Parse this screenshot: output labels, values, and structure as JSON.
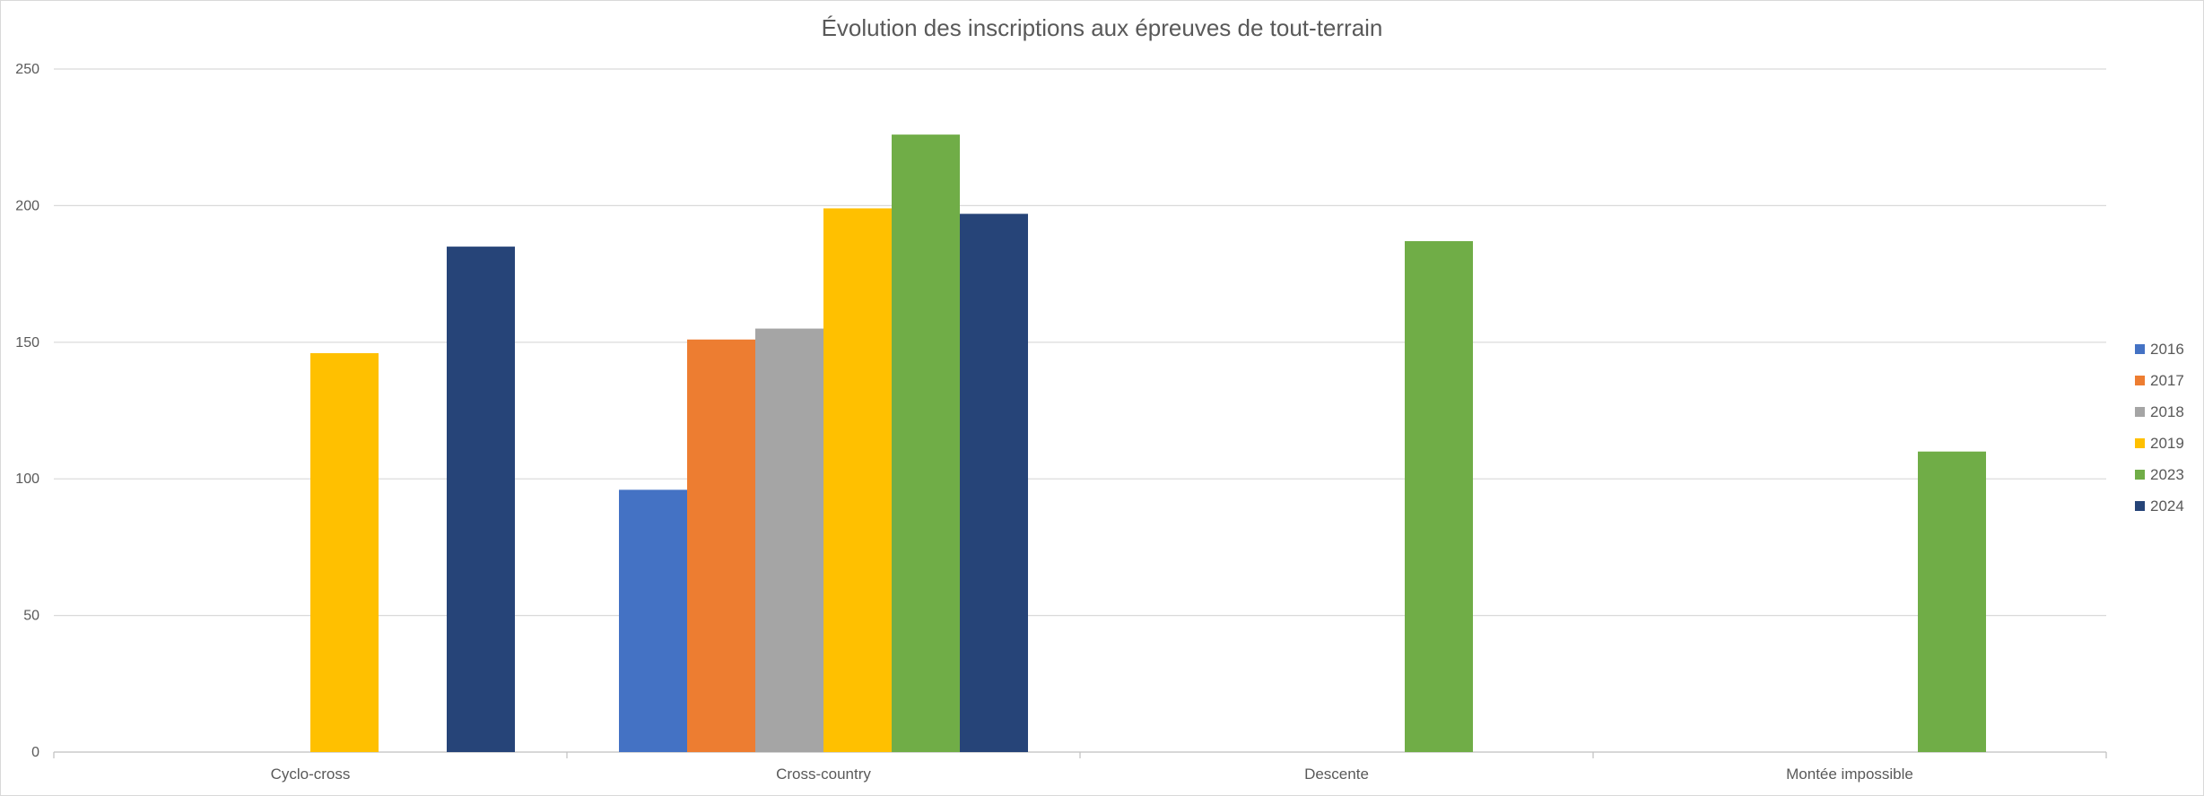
{
  "chart_data": {
    "type": "bar",
    "title": "Évolution des inscriptions aux épreuves de tout-terrain",
    "xlabel": "",
    "ylabel": "",
    "categories": [
      "Cyclo-cross",
      "Cross-country",
      "Descente",
      "Montée impossible"
    ],
    "ylim": [
      0,
      250
    ],
    "yticks": [
      "0",
      "50",
      "100",
      "150",
      "200",
      "250"
    ],
    "grid": true,
    "legend_position": "right",
    "series": [
      {
        "name": "2016",
        "color": "#4472C4",
        "values": [
          null,
          96,
          null,
          null
        ]
      },
      {
        "name": "2017",
        "color": "#ED7D31",
        "values": [
          null,
          151,
          null,
          null
        ]
      },
      {
        "name": "2018",
        "color": "#A5A5A5",
        "values": [
          null,
          155,
          null,
          null
        ]
      },
      {
        "name": "2019",
        "color": "#FFC000",
        "values": [
          146,
          199,
          null,
          null
        ]
      },
      {
        "name": "2023",
        "color": "#70AD47",
        "values": [
          null,
          226,
          187,
          110
        ]
      },
      {
        "name": "2024",
        "color": "#264478",
        "values": [
          185,
          197,
          null,
          null
        ]
      }
    ]
  }
}
